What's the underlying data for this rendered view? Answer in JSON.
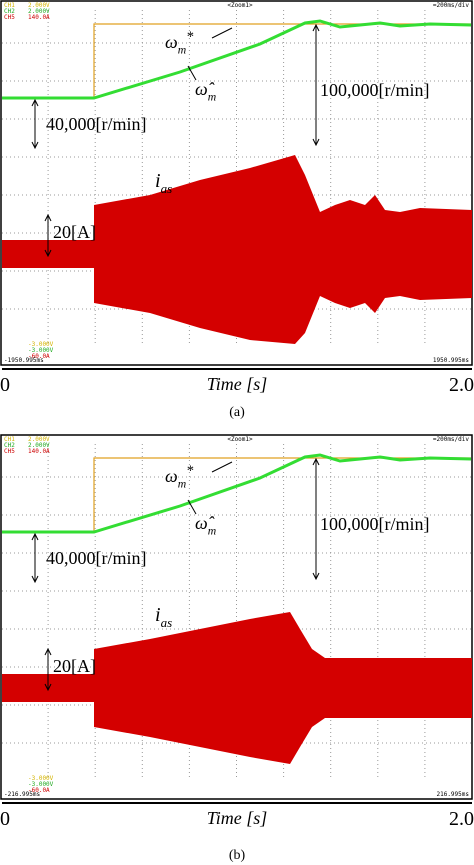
{
  "panels": [
    {
      "scope": {
        "channels": [
          {
            "name": "CH1",
            "scale": "2.000V",
            "offset": "-3.000V"
          },
          {
            "name": "CH2",
            "scale": "2.000V",
            "offset": "-3.000V"
          },
          {
            "name": "CH5",
            "scale": "140.0A",
            "offset": "-60.0A"
          }
        ],
        "zoom": "<Zoom1>",
        "timebase": "=200ms/div",
        "start": "-1950.995ms",
        "end": "1950.995ms"
      },
      "annotations": {
        "speed_ref": {
          "symbol": "ω",
          "sub": "m",
          "sup": "*"
        },
        "speed_est": {
          "symbol": "ω̂",
          "sub": "m"
        },
        "speed_step": "100,000[r/min]",
        "speed_init": "40,000[r/min]",
        "current": {
          "symbol": "i",
          "sub": "as"
        },
        "current_amp": "20[A]"
      },
      "axis": {
        "start": "0",
        "label": "Time [s]",
        "end": "2.0"
      },
      "caption": "(a)"
    },
    {
      "scope": {
        "channels": [
          {
            "name": "CH1",
            "scale": "2.000V",
            "offset": "-3.000V"
          },
          {
            "name": "CH2",
            "scale": "2.000V",
            "offset": "-3.000V"
          },
          {
            "name": "CH5",
            "scale": "140.0A",
            "offset": "-60.0A"
          }
        ],
        "zoom": "<Zoom1>",
        "timebase": "=200ms/div",
        "start": "-216.995ms",
        "end": "216.995ms"
      },
      "annotations": {
        "speed_ref": {
          "symbol": "ω",
          "sub": "m",
          "sup": "*"
        },
        "speed_est": {
          "symbol": "ω̂",
          "sub": "m"
        },
        "speed_step": "100,000[r/min]",
        "speed_init": "40,000[r/min]",
        "current": {
          "symbol": "i",
          "sub": "as"
        },
        "current_amp": "20[A]"
      },
      "axis": {
        "start": "0",
        "label": "Time [s]",
        "end": "2.0"
      },
      "caption": "(b)"
    }
  ]
}
